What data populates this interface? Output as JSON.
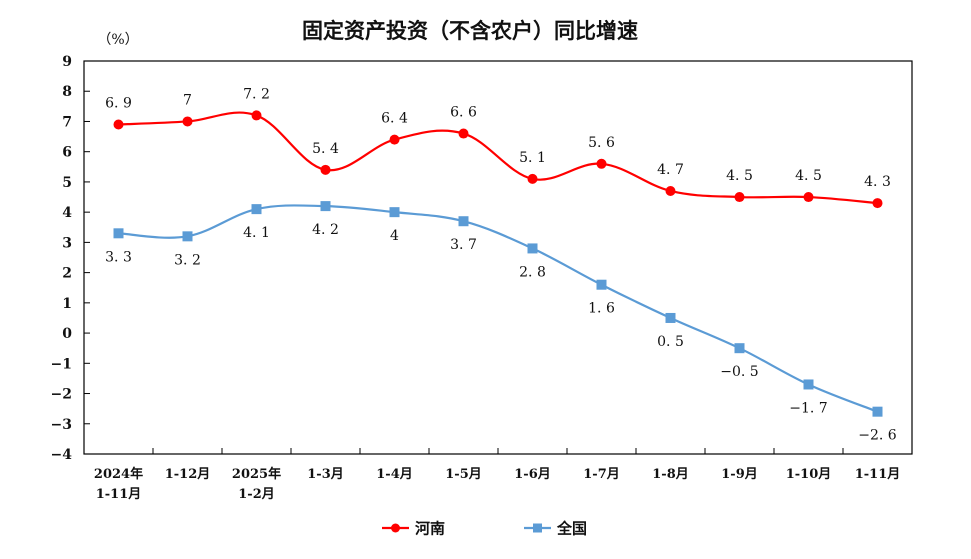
{
  "chart_data": {
    "type": "line",
    "title": "固定资产投资（不含农户）同比增速",
    "ylabel": "（%）",
    "xlabel": "",
    "ylim": [
      -4,
      9
    ],
    "yticks": [
      "9",
      "8",
      "7",
      "6",
      "5",
      "4",
      "3",
      "2",
      "1",
      "0",
      "-1",
      "-2",
      "-3",
      "-4"
    ],
    "ytick_values": [
      9,
      8,
      7,
      6,
      5,
      4,
      3,
      2,
      1,
      0,
      -1,
      -2,
      -3,
      -4
    ],
    "grid": false,
    "legend_position": "bottom-center",
    "categories": [
      [
        "2024年",
        "1-11月"
      ],
      [
        "1-12月"
      ],
      [
        "2025年",
        "1-2月"
      ],
      [
        "1-3月"
      ],
      [
        "1-4月"
      ],
      [
        "1-5月"
      ],
      [
        "1-6月"
      ],
      [
        "1-7月"
      ],
      [
        "1-8月"
      ],
      [
        "1-9月"
      ],
      [
        "1-10月"
      ],
      [
        "1-11月"
      ]
    ],
    "series": [
      {
        "name": "河南",
        "color": "#ff0000",
        "marker": "circle",
        "values": [
          6.9,
          7,
          7.2,
          5.4,
          6.4,
          6.6,
          5.1,
          5.6,
          4.7,
          4.5,
          4.5,
          4.3
        ],
        "labels": [
          "6.9",
          "7",
          "7.2",
          "5.4",
          "6.4",
          "6.6",
          "5.1",
          "5.6",
          "4.7",
          "4.5",
          "4.5",
          "4.3"
        ],
        "label_position": "above"
      },
      {
        "name": "全国",
        "color": "#5b9bd5",
        "marker": "square",
        "values": [
          3.3,
          3.2,
          4.1,
          4.2,
          4,
          3.7,
          2.8,
          1.6,
          0.5,
          -0.5,
          -1.7,
          -2.6
        ],
        "labels": [
          "3.3",
          "3.2",
          "4.1",
          "4.2",
          "4",
          "3.7",
          "2.8",
          "1.6",
          "0.5",
          "-0.5",
          "-1.7",
          "-2.6"
        ],
        "label_position": "below"
      }
    ]
  }
}
